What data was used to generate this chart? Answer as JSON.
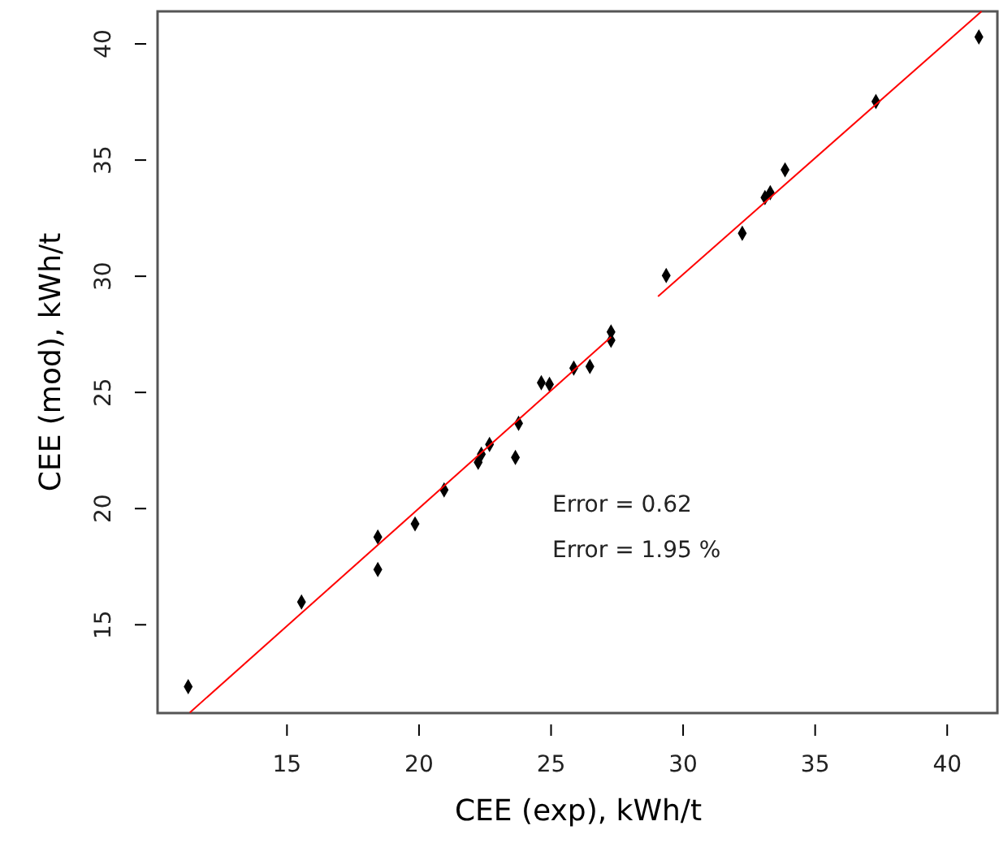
{
  "chart_data": {
    "type": "scatter",
    "xlabel": "CEE (exp), kWh/t",
    "ylabel": "CEE (mod), kWh/t",
    "xlim": [
      10.1,
      41.9
    ],
    "ylim": [
      11.2,
      41.4
    ],
    "xticks": [
      15,
      20,
      25,
      30,
      35,
      40
    ],
    "yticks": [
      15,
      20,
      25,
      30,
      35,
      40
    ],
    "grid": false,
    "marker": "diamond",
    "annotations": [
      "Error =  0.62",
      "Error =  1.95 %"
    ],
    "series": [
      {
        "type": "scatter",
        "color": "#000000",
        "x": [
          11.26,
          15.55,
          18.44,
          18.44,
          19.85,
          20.95,
          22.24,
          22.36,
          22.67,
          23.65,
          23.77,
          24.63,
          24.94,
          25.86,
          26.47,
          27.27,
          27.27,
          29.36,
          32.24,
          33.1,
          33.3,
          33.86,
          37.3,
          41.2
        ],
        "values": [
          12.34,
          15.98,
          18.78,
          17.38,
          19.34,
          20.8,
          21.99,
          22.34,
          22.76,
          22.2,
          23.67,
          25.42,
          25.35,
          26.05,
          26.12,
          27.24,
          27.6,
          30.03,
          31.85,
          33.39,
          33.6,
          34.58,
          37.52,
          40.3
        ]
      },
      {
        "type": "line",
        "color": "#ff0000",
        "marker": "none",
        "x": [
          11.32,
          27.27
        ],
        "values": [
          11.22,
          27.38
        ]
      },
      {
        "type": "line",
        "color": "#ff0000",
        "marker": "none",
        "x": [
          29.05,
          41.3
        ],
        "values": [
          29.13,
          41.4
        ]
      }
    ]
  }
}
